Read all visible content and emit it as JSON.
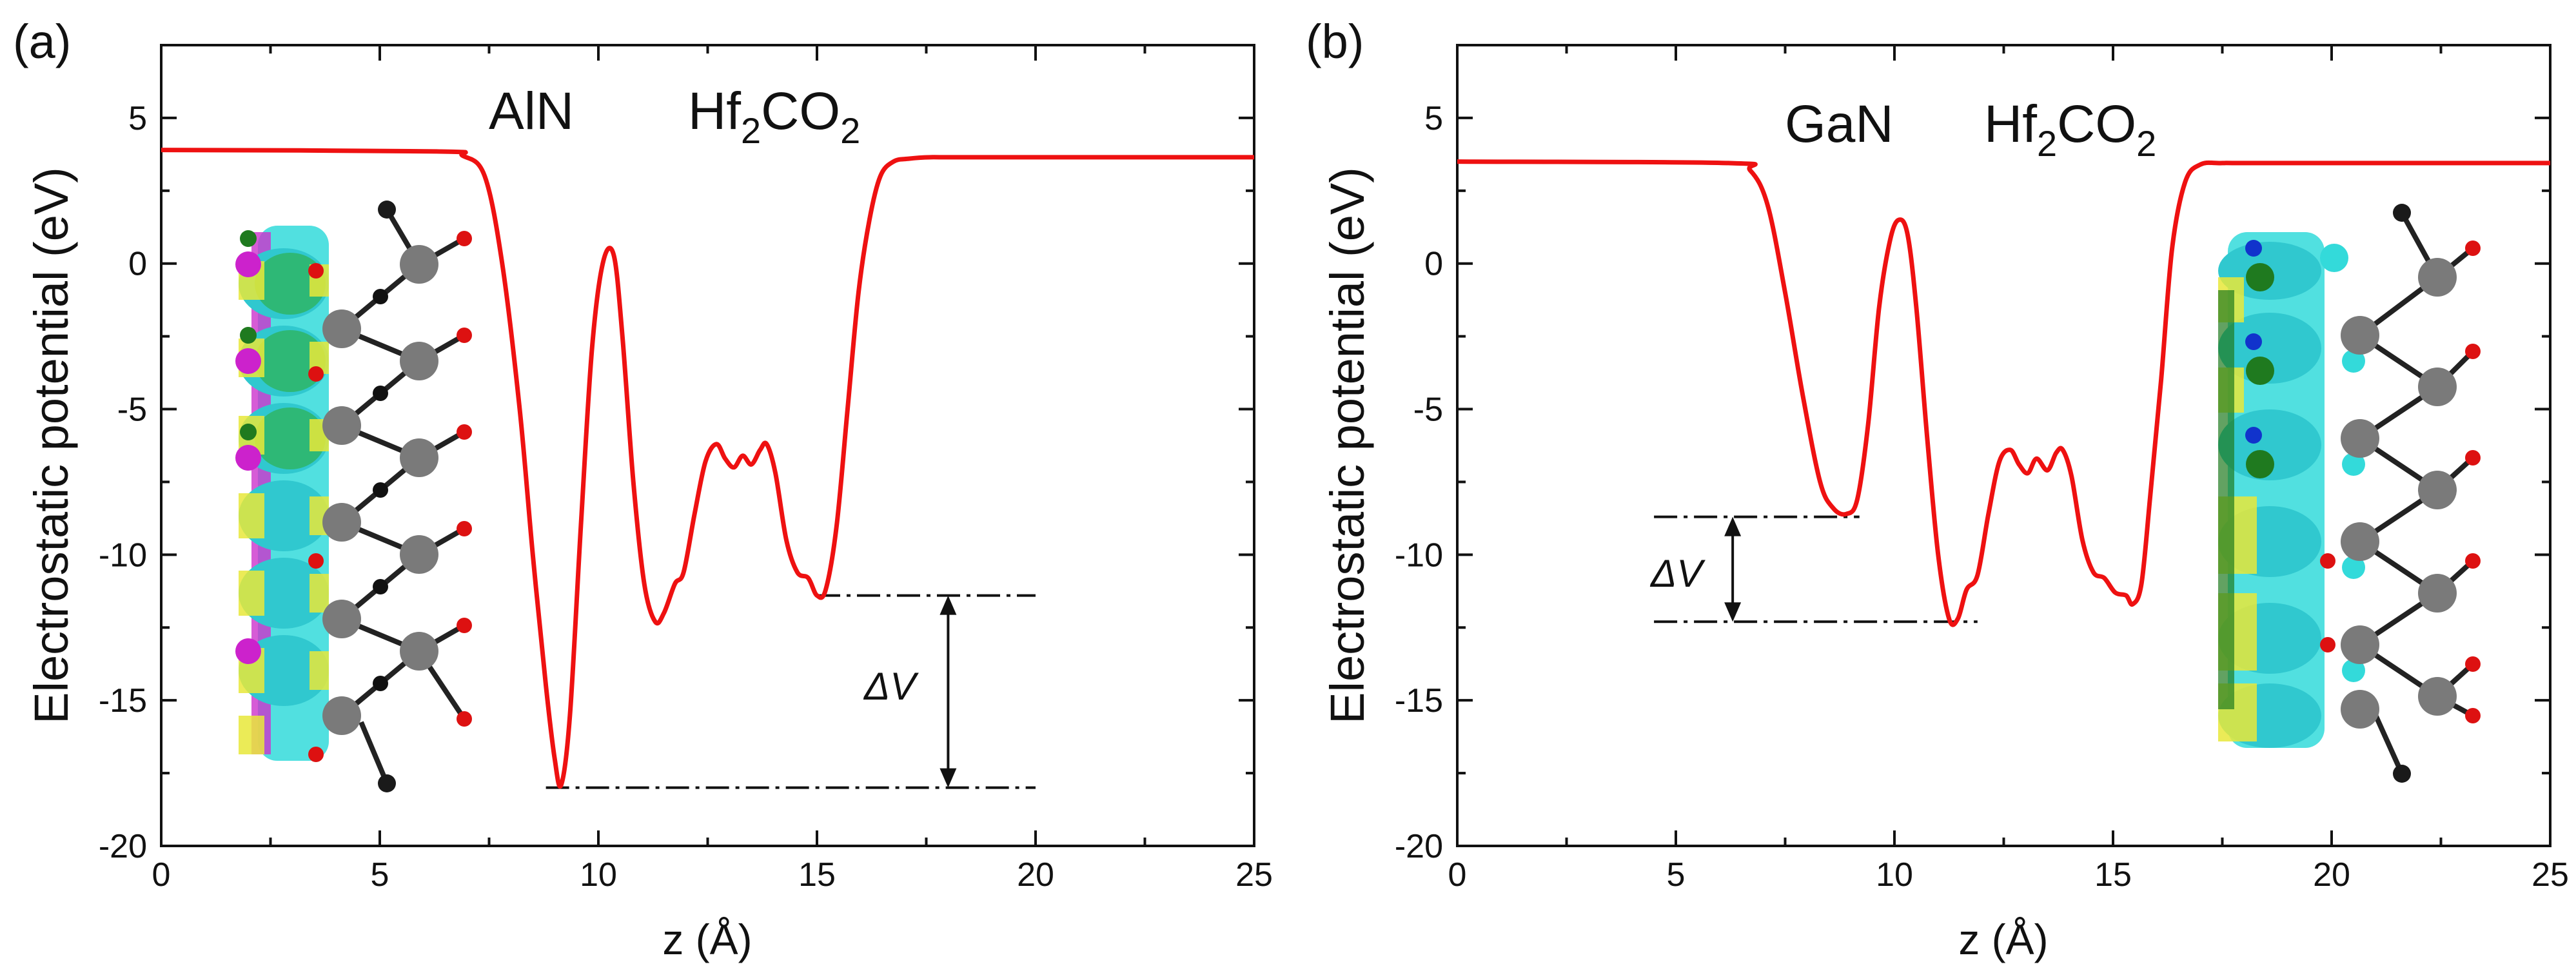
{
  "chart_data": [
    {
      "type": "line",
      "panel_label": "(a)",
      "xlabel": "z (Å)",
      "ylabel": "Electrostatic potential (eV)",
      "xlim": [
        0,
        25
      ],
      "ylim": [
        -20,
        7.5
      ],
      "xticks": [
        "0",
        "5",
        "10",
        "15",
        "20",
        "25"
      ],
      "yticks": [
        "5",
        "0",
        "-5",
        "-10",
        "-15",
        "-20"
      ],
      "annotations": {
        "material_1": "AlN",
        "material_2_base": "Hf",
        "material_2_sub1": "2",
        "material_2_mid": "CO",
        "material_2_sub2": "2",
        "delta_v": "ΔV"
      },
      "levels": {
        "upper": -11.4,
        "lower": -18.0
      },
      "series": [
        {
          "name": "potential",
          "color": "#ee1111",
          "x": [
            0,
            6.3,
            6.9,
            7.4,
            7.8,
            8.2,
            8.5,
            8.8,
            9.0,
            9.15,
            9.35,
            9.6,
            9.85,
            10.1,
            10.35,
            10.55,
            10.8,
            11.05,
            11.3,
            11.5,
            11.75,
            11.95,
            12.2,
            12.45,
            12.7,
            12.9,
            13.1,
            13.3,
            13.5,
            13.7,
            13.85,
            14.05,
            14.3,
            14.55,
            14.8,
            15.0,
            15.2,
            15.45,
            15.7,
            15.95,
            16.2,
            16.45,
            16.75,
            17.1,
            17.6,
            18.5,
            25
          ],
          "y": [
            3.9,
            3.85,
            3.7,
            3.0,
            0.0,
            -5.0,
            -10.0,
            -14.5,
            -17.0,
            -17.9,
            -15.5,
            -9.0,
            -3.0,
            0.0,
            0.3,
            -2.5,
            -7.5,
            -11.0,
            -12.3,
            -12.0,
            -11.0,
            -10.6,
            -8.6,
            -6.8,
            -6.2,
            -6.7,
            -7.0,
            -6.6,
            -6.9,
            -6.4,
            -6.2,
            -7.2,
            -9.5,
            -10.6,
            -10.8,
            -11.4,
            -11.2,
            -9.0,
            -5.0,
            -1.0,
            1.5,
            3.0,
            3.5,
            3.6,
            3.65,
            3.65,
            3.65
          ]
        }
      ]
    },
    {
      "type": "line",
      "panel_label": "(b)",
      "xlabel": "z (Å)",
      "ylabel": "Electrostatic potential (eV)",
      "xlim": [
        0,
        25
      ],
      "ylim": [
        -20,
        7.5
      ],
      "xticks": [
        "0",
        "5",
        "10",
        "15",
        "20",
        "25"
      ],
      "yticks": [
        "5",
        "0",
        "-5",
        "-10",
        "-15",
        "-20"
      ],
      "annotations": {
        "material_1": "GaN",
        "material_2_base": "Hf",
        "material_2_sub1": "2",
        "material_2_mid": "CO",
        "material_2_sub2": "2",
        "delta_v": "ΔV"
      },
      "levels": {
        "upper": -8.7,
        "lower": -12.3
      },
      "series": [
        {
          "name": "potential",
          "color": "#ee1111",
          "x": [
            0,
            6.2,
            6.7,
            7.1,
            7.5,
            7.9,
            8.3,
            8.6,
            8.9,
            9.15,
            9.4,
            9.65,
            9.9,
            10.1,
            10.3,
            10.5,
            10.75,
            11.0,
            11.25,
            11.45,
            11.65,
            11.9,
            12.15,
            12.4,
            12.65,
            12.85,
            13.05,
            13.25,
            13.5,
            13.7,
            13.85,
            14.05,
            14.3,
            14.55,
            14.8,
            15.05,
            15.3,
            15.45,
            15.65,
            15.85,
            16.1,
            16.35,
            16.65,
            17.0,
            17.5,
            18.5,
            25
          ],
          "y": [
            3.5,
            3.45,
            3.2,
            2.0,
            -1.0,
            -4.5,
            -7.5,
            -8.4,
            -8.6,
            -8.1,
            -5.5,
            -1.5,
            0.8,
            1.5,
            1.0,
            -1.5,
            -6.0,
            -10.0,
            -12.2,
            -12.2,
            -11.2,
            -10.7,
            -8.6,
            -6.8,
            -6.4,
            -6.9,
            -7.2,
            -6.7,
            -7.1,
            -6.5,
            -6.4,
            -7.3,
            -9.5,
            -10.6,
            -10.8,
            -11.3,
            -11.4,
            -11.7,
            -11.0,
            -8.0,
            -4.0,
            0.5,
            2.8,
            3.4,
            3.45,
            3.45,
            3.45
          ]
        }
      ]
    }
  ]
}
